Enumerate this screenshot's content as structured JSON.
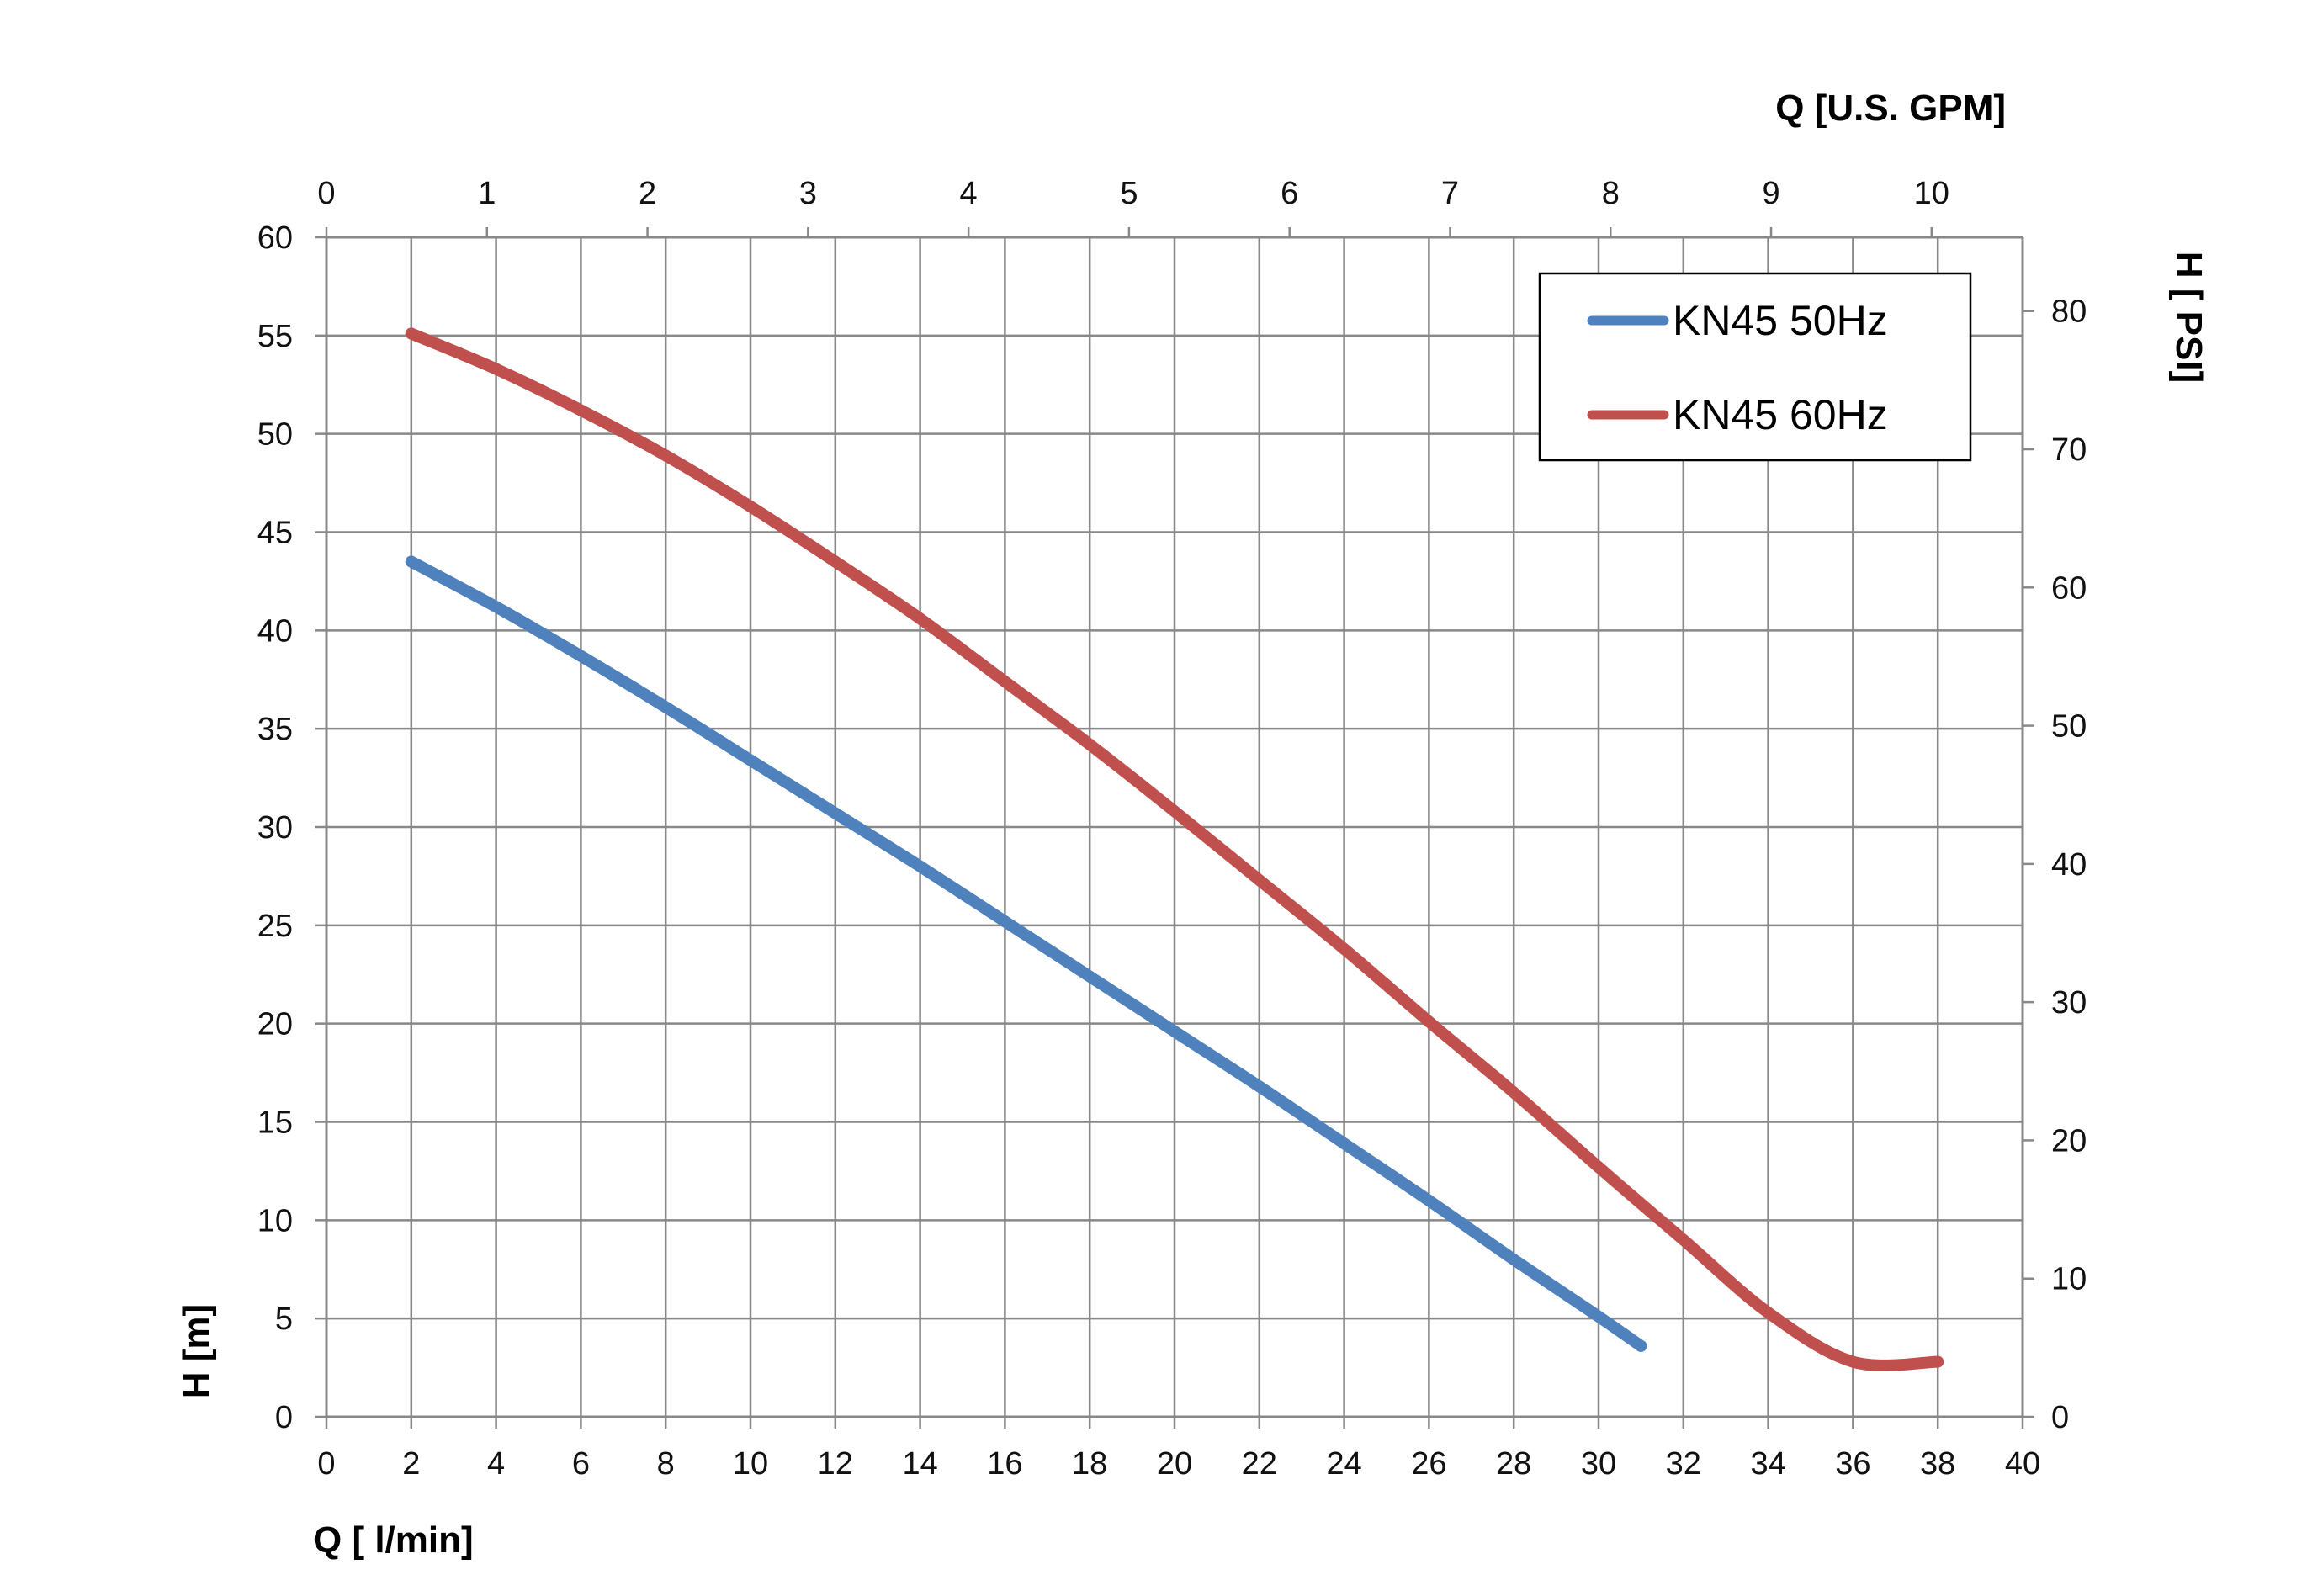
{
  "chart_data": {
    "type": "line",
    "axes": {
      "x_bottom": {
        "label": "Q [ l/min]",
        "range": [
          0,
          40
        ],
        "ticks": [
          "0",
          "2",
          "4",
          "6",
          "8",
          "10",
          "12",
          "14",
          "16",
          "18",
          "20",
          "22",
          "24",
          "26",
          "28",
          "30",
          "32",
          "34",
          "36",
          "38",
          "40"
        ]
      },
      "x_top": {
        "label": "Q  [U.S. GPM]",
        "range": [
          0,
          10.567
        ],
        "ticks": [
          "0",
          "1",
          "2",
          "3",
          "4",
          "5",
          "6",
          "7",
          "8",
          "9",
          "10"
        ]
      },
      "y_left": {
        "label": "H [m]",
        "range": [
          0,
          60
        ],
        "ticks": [
          "0",
          "5",
          "10",
          "15",
          "20",
          "25",
          "30",
          "35",
          "40",
          "45",
          "50",
          "55",
          "60"
        ]
      },
      "y_right": {
        "label": "H [ PSI]",
        "range": [
          0,
          85.34
        ],
        "ticks": [
          "0",
          "10",
          "20",
          "30",
          "40",
          "50",
          "60",
          "70",
          "80"
        ]
      }
    },
    "grid": true,
    "legend": {
      "placement": "top-right"
    },
    "series": [
      {
        "name": "KN45 50Hz",
        "color": "#4f81bd",
        "x": [
          2,
          4,
          6,
          8,
          10,
          12,
          14,
          16,
          18,
          20,
          22,
          24,
          26,
          28,
          30,
          31
        ],
        "y": [
          43.5,
          41.2,
          38.7,
          36.1,
          33.4,
          30.7,
          28.0,
          25.2,
          22.4,
          19.6,
          16.8,
          13.9,
          11.0,
          8.0,
          5.1,
          3.6
        ]
      },
      {
        "name": "KN45 60Hz",
        "color": "#c0504d",
        "x": [
          2,
          4,
          6,
          8,
          10,
          12,
          14,
          16,
          18,
          20,
          22,
          24,
          26,
          28,
          30,
          32,
          34,
          36,
          38
        ],
        "y": [
          55.1,
          53.3,
          51.2,
          48.9,
          46.3,
          43.5,
          40.6,
          37.4,
          34.2,
          30.8,
          27.3,
          23.8,
          20.1,
          16.5,
          12.7,
          9.0,
          5.3,
          2.8,
          2.8
        ]
      }
    ]
  }
}
